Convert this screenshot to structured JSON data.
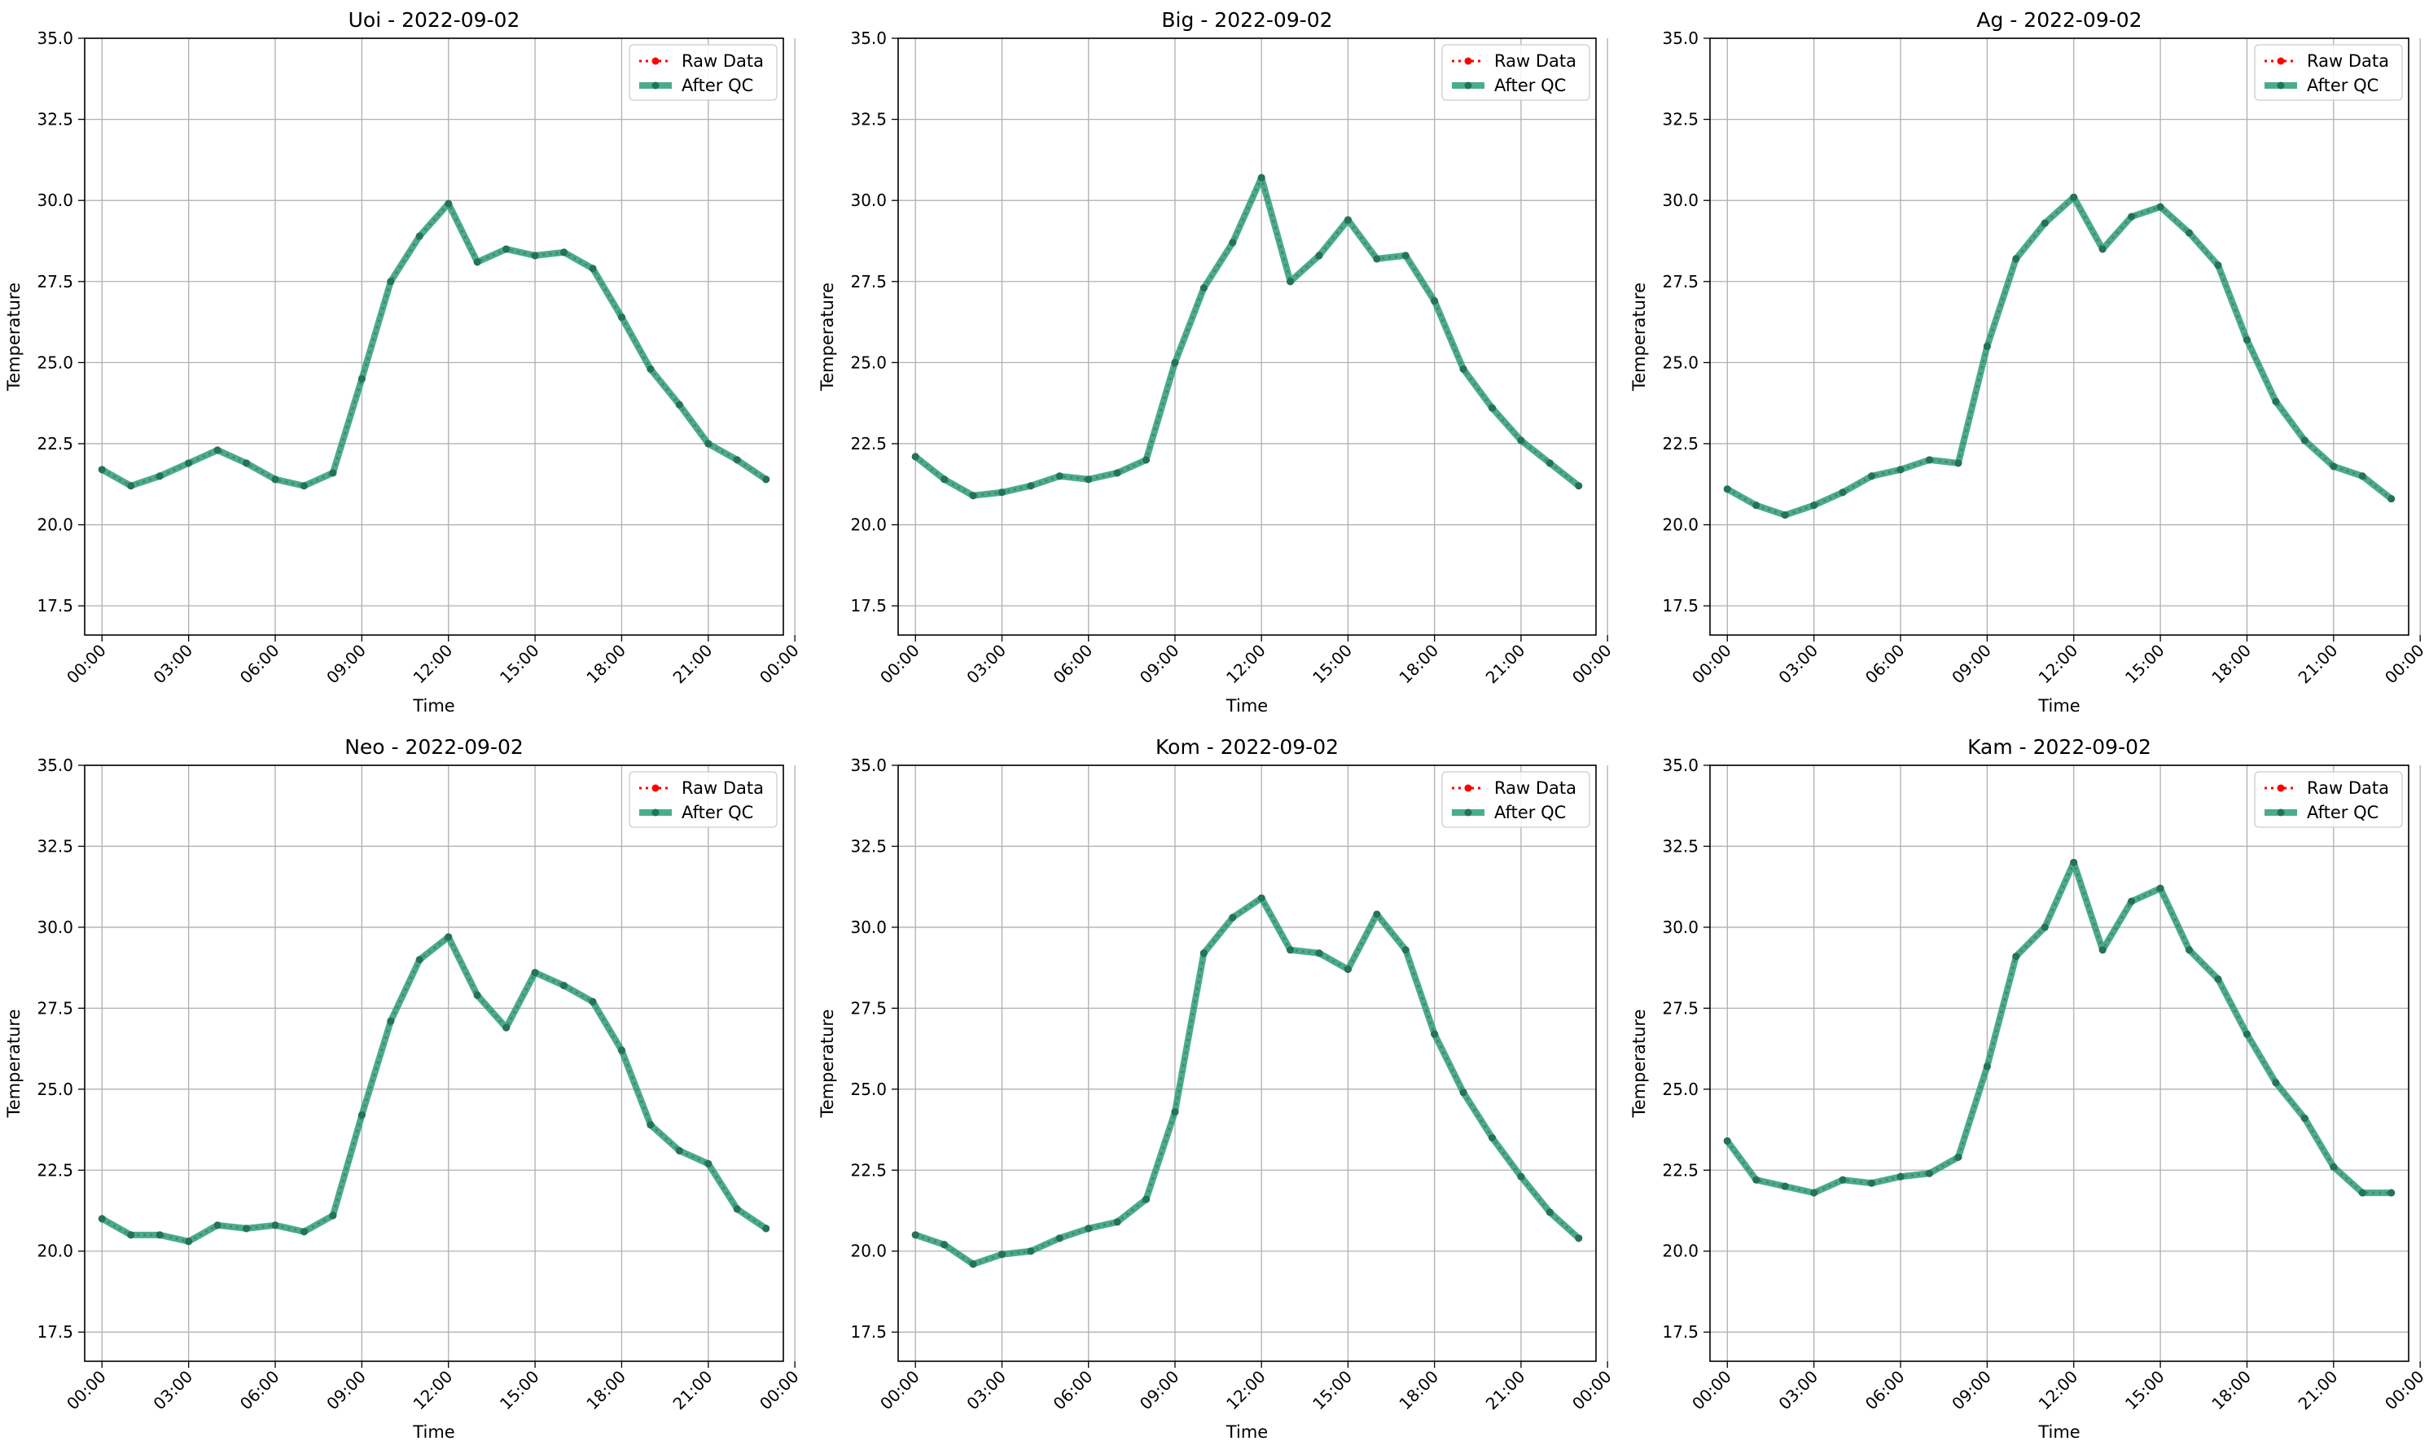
{
  "colors": {
    "raw": "#ff0000",
    "qc": "#2a9d78",
    "qc_marker": "#22735c",
    "grid": "#b0b0b0",
    "axis": "#000000"
  },
  "legend": {
    "raw_label": "Raw Data",
    "qc_label": "After QC",
    "placement": "top-right"
  },
  "chart_data": [
    {
      "type": "line",
      "title": "Uoi - 2022-09-02",
      "xlabel": "Time",
      "ylabel": "Temperature",
      "x_ticks": [
        "00:00",
        "03:00",
        "06:00",
        "09:00",
        "12:00",
        "15:00",
        "18:00",
        "21:00",
        "00:00"
      ],
      "y_ticks": [
        "17.5",
        "20.0",
        "22.5",
        "25.0",
        "27.5",
        "30.0",
        "32.5",
        "35.0"
      ],
      "xlim": [
        "00:00",
        "24:00"
      ],
      "ylim": [
        16.6,
        35.0
      ],
      "grid": true,
      "x": [
        "00:00",
        "01:00",
        "02:00",
        "03:00",
        "04:00",
        "05:00",
        "06:00",
        "07:00",
        "08:00",
        "09:00",
        "10:00",
        "11:00",
        "12:00",
        "13:00",
        "14:00",
        "15:00",
        "16:00",
        "17:00",
        "18:00",
        "19:00",
        "20:00",
        "21:00",
        "22:00",
        "23:00"
      ],
      "series": [
        {
          "name": "Raw Data",
          "values": [
            21.7,
            21.2,
            21.5,
            21.9,
            22.3,
            21.9,
            21.4,
            21.2,
            21.6,
            24.5,
            27.5,
            28.9,
            29.9,
            28.1,
            28.5,
            28.3,
            28.4,
            27.9,
            26.4,
            24.8,
            23.7,
            22.5,
            22.0,
            21.4
          ]
        },
        {
          "name": "After QC",
          "values": [
            21.7,
            21.2,
            21.5,
            21.9,
            22.3,
            21.9,
            21.4,
            21.2,
            21.6,
            24.5,
            27.5,
            28.9,
            29.9,
            28.1,
            28.5,
            28.3,
            28.4,
            27.9,
            26.4,
            24.8,
            23.7,
            22.5,
            22.0,
            21.4
          ]
        }
      ]
    },
    {
      "type": "line",
      "title": "Big - 2022-09-02",
      "xlabel": "Time",
      "ylabel": "Temperature",
      "x_ticks": [
        "00:00",
        "03:00",
        "06:00",
        "09:00",
        "12:00",
        "15:00",
        "18:00",
        "21:00",
        "00:00"
      ],
      "y_ticks": [
        "17.5",
        "20.0",
        "22.5",
        "25.0",
        "27.5",
        "30.0",
        "32.5",
        "35.0"
      ],
      "xlim": [
        "00:00",
        "24:00"
      ],
      "ylim": [
        16.6,
        35.0
      ],
      "grid": true,
      "x": [
        "00:00",
        "01:00",
        "02:00",
        "03:00",
        "04:00",
        "05:00",
        "06:00",
        "07:00",
        "08:00",
        "09:00",
        "10:00",
        "11:00",
        "12:00",
        "13:00",
        "14:00",
        "15:00",
        "16:00",
        "17:00",
        "18:00",
        "19:00",
        "20:00",
        "21:00",
        "22:00",
        "23:00"
      ],
      "series": [
        {
          "name": "Raw Data",
          "values": [
            22.1,
            21.4,
            20.9,
            21.0,
            21.2,
            21.5,
            21.4,
            21.6,
            22.0,
            25.0,
            27.3,
            28.7,
            30.7,
            27.5,
            28.3,
            29.4,
            28.2,
            28.3,
            26.9,
            24.8,
            23.6,
            22.6,
            21.9,
            21.2
          ]
        },
        {
          "name": "After QC",
          "values": [
            22.1,
            21.4,
            20.9,
            21.0,
            21.2,
            21.5,
            21.4,
            21.6,
            22.0,
            25.0,
            27.3,
            28.7,
            30.7,
            27.5,
            28.3,
            29.4,
            28.2,
            28.3,
            26.9,
            24.8,
            23.6,
            22.6,
            21.9,
            21.2
          ]
        }
      ]
    },
    {
      "type": "line",
      "title": "Ag - 2022-09-02",
      "xlabel": "Time",
      "ylabel": "Temperature",
      "x_ticks": [
        "00:00",
        "03:00",
        "06:00",
        "09:00",
        "12:00",
        "15:00",
        "18:00",
        "21:00",
        "00:00"
      ],
      "y_ticks": [
        "17.5",
        "20.0",
        "22.5",
        "25.0",
        "27.5",
        "30.0",
        "32.5",
        "35.0"
      ],
      "xlim": [
        "00:00",
        "24:00"
      ],
      "ylim": [
        16.6,
        35.0
      ],
      "grid": true,
      "x": [
        "00:00",
        "01:00",
        "02:00",
        "03:00",
        "04:00",
        "05:00",
        "06:00",
        "07:00",
        "08:00",
        "09:00",
        "10:00",
        "11:00",
        "12:00",
        "13:00",
        "14:00",
        "15:00",
        "16:00",
        "17:00",
        "18:00",
        "19:00",
        "20:00",
        "21:00",
        "22:00",
        "23:00"
      ],
      "series": [
        {
          "name": "Raw Data",
          "values": [
            21.1,
            20.6,
            20.3,
            20.6,
            21.0,
            21.5,
            21.7,
            22.0,
            21.9,
            25.5,
            28.2,
            29.3,
            30.1,
            28.5,
            29.5,
            29.8,
            29.0,
            28.0,
            25.7,
            23.8,
            22.6,
            21.8,
            21.5,
            20.8
          ]
        },
        {
          "name": "After QC",
          "values": [
            21.1,
            20.6,
            20.3,
            20.6,
            21.0,
            21.5,
            21.7,
            22.0,
            21.9,
            25.5,
            28.2,
            29.3,
            30.1,
            28.5,
            29.5,
            29.8,
            29.0,
            28.0,
            25.7,
            23.8,
            22.6,
            21.8,
            21.5,
            20.8
          ]
        }
      ]
    },
    {
      "type": "line",
      "title": "Neo - 2022-09-02",
      "xlabel": "Time",
      "ylabel": "Temperature",
      "x_ticks": [
        "00:00",
        "03:00",
        "06:00",
        "09:00",
        "12:00",
        "15:00",
        "18:00",
        "21:00",
        "00:00"
      ],
      "y_ticks": [
        "17.5",
        "20.0",
        "22.5",
        "25.0",
        "27.5",
        "30.0",
        "32.5",
        "35.0"
      ],
      "xlim": [
        "00:00",
        "24:00"
      ],
      "ylim": [
        16.6,
        35.0
      ],
      "grid": true,
      "x": [
        "00:00",
        "01:00",
        "02:00",
        "03:00",
        "04:00",
        "05:00",
        "06:00",
        "07:00",
        "08:00",
        "09:00",
        "10:00",
        "11:00",
        "12:00",
        "13:00",
        "14:00",
        "15:00",
        "16:00",
        "17:00",
        "18:00",
        "19:00",
        "20:00",
        "21:00",
        "22:00",
        "23:00"
      ],
      "series": [
        {
          "name": "Raw Data",
          "values": [
            21.0,
            20.5,
            20.5,
            20.3,
            20.8,
            20.7,
            20.8,
            20.6,
            21.1,
            24.2,
            27.1,
            29.0,
            29.7,
            27.9,
            26.9,
            28.6,
            28.2,
            27.7,
            26.2,
            23.9,
            23.1,
            22.7,
            21.3,
            20.7
          ]
        },
        {
          "name": "After QC",
          "values": [
            21.0,
            20.5,
            20.5,
            20.3,
            20.8,
            20.7,
            20.8,
            20.6,
            21.1,
            24.2,
            27.1,
            29.0,
            29.7,
            27.9,
            26.9,
            28.6,
            28.2,
            27.7,
            26.2,
            23.9,
            23.1,
            22.7,
            21.3,
            20.7
          ]
        }
      ]
    },
    {
      "type": "line",
      "title": "Kom - 2022-09-02",
      "xlabel": "Time",
      "ylabel": "Temperature",
      "x_ticks": [
        "00:00",
        "03:00",
        "06:00",
        "09:00",
        "12:00",
        "15:00",
        "18:00",
        "21:00",
        "00:00"
      ],
      "y_ticks": [
        "17.5",
        "20.0",
        "22.5",
        "25.0",
        "27.5",
        "30.0",
        "32.5",
        "35.0"
      ],
      "xlim": [
        "00:00",
        "24:00"
      ],
      "ylim": [
        16.6,
        35.0
      ],
      "grid": true,
      "x": [
        "00:00",
        "01:00",
        "02:00",
        "03:00",
        "04:00",
        "05:00",
        "06:00",
        "07:00",
        "08:00",
        "09:00",
        "10:00",
        "11:00",
        "12:00",
        "13:00",
        "14:00",
        "15:00",
        "16:00",
        "17:00",
        "18:00",
        "19:00",
        "20:00",
        "21:00",
        "22:00",
        "23:00"
      ],
      "series": [
        {
          "name": "Raw Data",
          "values": [
            20.5,
            20.2,
            19.6,
            19.9,
            20.0,
            20.4,
            20.7,
            20.9,
            21.6,
            24.3,
            29.2,
            30.3,
            30.9,
            29.3,
            29.2,
            28.7,
            30.4,
            29.3,
            26.7,
            24.9,
            23.5,
            22.3,
            21.2,
            20.4
          ]
        },
        {
          "name": "After QC",
          "values": [
            20.5,
            20.2,
            19.6,
            19.9,
            20.0,
            20.4,
            20.7,
            20.9,
            21.6,
            24.3,
            29.2,
            30.3,
            30.9,
            29.3,
            29.2,
            28.7,
            30.4,
            29.3,
            26.7,
            24.9,
            23.5,
            22.3,
            21.2,
            20.4
          ]
        }
      ]
    },
    {
      "type": "line",
      "title": "Kam - 2022-09-02",
      "xlabel": "Time",
      "ylabel": "Temperature",
      "x_ticks": [
        "00:00",
        "03:00",
        "06:00",
        "09:00",
        "12:00",
        "15:00",
        "18:00",
        "21:00",
        "00:00"
      ],
      "y_ticks": [
        "17.5",
        "20.0",
        "22.5",
        "25.0",
        "27.5",
        "30.0",
        "32.5",
        "35.0"
      ],
      "xlim": [
        "00:00",
        "24:00"
      ],
      "ylim": [
        16.6,
        35.0
      ],
      "grid": true,
      "x": [
        "00:00",
        "01:00",
        "02:00",
        "03:00",
        "04:00",
        "05:00",
        "06:00",
        "07:00",
        "08:00",
        "09:00",
        "10:00",
        "11:00",
        "12:00",
        "13:00",
        "14:00",
        "15:00",
        "16:00",
        "17:00",
        "18:00",
        "19:00",
        "20:00",
        "21:00",
        "22:00",
        "23:00"
      ],
      "series": [
        {
          "name": "Raw Data",
          "values": [
            23.4,
            22.2,
            22.0,
            21.8,
            22.2,
            22.1,
            22.3,
            22.4,
            22.9,
            25.7,
            29.1,
            30.0,
            32.0,
            29.3,
            30.8,
            31.2,
            29.3,
            28.4,
            26.7,
            25.2,
            24.1,
            22.6,
            21.8,
            21.8
          ]
        },
        {
          "name": "After QC",
          "values": [
            23.4,
            22.2,
            22.0,
            21.8,
            22.2,
            22.1,
            22.3,
            22.4,
            22.9,
            25.7,
            29.1,
            30.0,
            32.0,
            29.3,
            30.8,
            31.2,
            29.3,
            28.4,
            26.7,
            25.2,
            24.1,
            22.6,
            21.8,
            21.8
          ]
        }
      ]
    }
  ]
}
